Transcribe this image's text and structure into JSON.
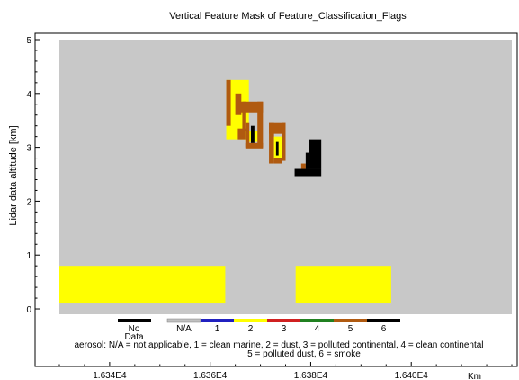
{
  "chart_data": {
    "type": "heatmap",
    "title": "Vertical Feature Mask of Feature_Classification_Flags",
    "ylabel": "Lidar data altitude [km]",
    "x_unit": "Km",
    "xlim": [
      16330,
      16420
    ],
    "ylim": [
      -0.1,
      5.0
    ],
    "x_ticks": [
      16340,
      16360,
      16380,
      16400
    ],
    "x_tick_labels": [
      "1.634E4",
      "1.636E4",
      "1.638E4",
      "1.640E4"
    ],
    "y_ticks": [
      0,
      1,
      2,
      3,
      4,
      5
    ],
    "y_tick_labels": [
      "0",
      "1",
      "2",
      "3",
      "4",
      "5"
    ],
    "background_color": "#c8c8c8",
    "colors": {
      "no_data": "#000000",
      "na": "#c0c0c0",
      "clean_marine": "#2020c0",
      "dust": "#ffff00",
      "polluted_continental": "#d02020",
      "clean_continental": "#208020",
      "polluted_dust": "#b05a10",
      "smoke": "#000000"
    },
    "features": [
      {
        "class": 2,
        "x": [
          16330,
          16363
        ],
        "y": [
          0.1,
          0.8
        ]
      },
      {
        "class": 2,
        "x": [
          16377,
          16396
        ],
        "y": [
          0.1,
          0.8
        ]
      },
      {
        "class": 2,
        "x": [
          16363.2,
          16367.7
        ],
        "y": [
          3.15,
          4.25
        ]
      },
      {
        "class": 5,
        "x": [
          16363.2,
          16364.1
        ],
        "y": [
          3.4,
          4.25
        ]
      },
      {
        "class": 5,
        "x": [
          16365.0,
          16366.2
        ],
        "y": [
          3.6,
          4.0
        ]
      },
      {
        "class": 5,
        "x": [
          16365.5,
          16367.7
        ],
        "y": [
          3.15,
          3.35
        ]
      },
      {
        "class": 5,
        "x": [
          16366.1,
          16370.5
        ],
        "y": [
          3.65,
          3.85
        ]
      },
      {
        "class": 5,
        "x": [
          16366.4,
          16367.0
        ],
        "y": [
          3.2,
          3.85
        ]
      },
      {
        "class": 2,
        "x": [
          16367.0,
          16369.7
        ],
        "y": [
          3.1,
          3.3
        ]
      },
      {
        "class": 5,
        "x": [
          16367.0,
          16367.8
        ],
        "y": [
          3.0,
          3.45
        ]
      },
      {
        "class": 5,
        "x": [
          16369.4,
          16370.5
        ],
        "y": [
          3.0,
          3.85
        ]
      },
      {
        "class": 5,
        "x": [
          16367.0,
          16370.5
        ],
        "y": [
          2.98,
          3.08
        ]
      },
      {
        "class": 6,
        "x": [
          16368.1,
          16368.8
        ],
        "y": [
          3.08,
          3.4
        ]
      },
      {
        "class": 5,
        "x": [
          16371.7,
          16375.0
        ],
        "y": [
          3.25,
          3.45
        ]
      },
      {
        "class": 5,
        "x": [
          16371.7,
          16372.7
        ],
        "y": [
          2.7,
          3.45
        ]
      },
      {
        "class": 5,
        "x": [
          16374.2,
          16375.0
        ],
        "y": [
          2.75,
          3.45
        ]
      },
      {
        "class": 2,
        "x": [
          16372.7,
          16374.2
        ],
        "y": [
          2.75,
          3.2
        ]
      },
      {
        "class": 6,
        "x": [
          16373.1,
          16373.6
        ],
        "y": [
          2.85,
          3.1
        ]
      },
      {
        "class": 5,
        "x": [
          16372.7,
          16374.2
        ],
        "y": [
          2.7,
          2.8
        ]
      },
      {
        "class": 6,
        "x": [
          16376.8,
          16382.1
        ],
        "y": [
          2.45,
          2.6
        ]
      },
      {
        "class": 6,
        "x": [
          16379.6,
          16382.1
        ],
        "y": [
          2.6,
          3.15
        ]
      },
      {
        "class": 5,
        "x": [
          16378.1,
          16379.0
        ],
        "y": [
          2.6,
          2.7
        ]
      },
      {
        "class": 6,
        "x": [
          16379.0,
          16379.6
        ],
        "y": [
          2.6,
          2.9
        ]
      }
    ],
    "legend": [
      {
        "label": "No\nData",
        "color": "#000000"
      },
      {
        "label": "N/A",
        "color": "#c0c0c0"
      },
      {
        "label": "1",
        "color": "#2020c0"
      },
      {
        "label": "2",
        "color": "#ffff00"
      },
      {
        "label": "3",
        "color": "#d02020"
      },
      {
        "label": "4",
        "color": "#208020"
      },
      {
        "label": "5",
        "color": "#b05a10"
      },
      {
        "label": "6",
        "color": "#000000"
      }
    ],
    "legend_note_1": "aerosol: N/A = not applicable,    1 = clean marine,   2 = dust,   3 = polluted continental,   4 = clean continental",
    "legend_note_2": "5 = polluted dust,  6 = smoke"
  }
}
